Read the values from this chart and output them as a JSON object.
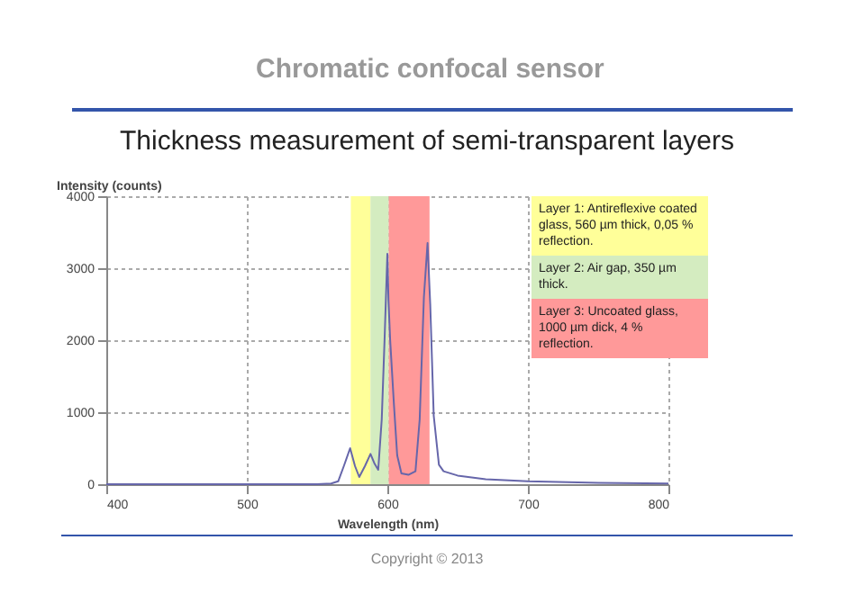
{
  "chart_data": {
    "type": "line",
    "title": "Chromatic confocal sensor",
    "subtitle": "Thickness measurement of semi-transparent layers",
    "xlabel": "Wavelength (nm)",
    "ylabel": "Intensity (counts)",
    "x": [
      400,
      450,
      500,
      550,
      560,
      565,
      569,
      573.5,
      577,
      580,
      584,
      588,
      591,
      593.5,
      596,
      598,
      600,
      600.8,
      602,
      604.7,
      607,
      610,
      615,
      620,
      623,
      626,
      628.6,
      630.5,
      633,
      636.7,
      640,
      650,
      670,
      700,
      750,
      800
    ],
    "series": [
      {
        "color": "#6666aa",
        "values": [
          0,
          0,
          0,
          0,
          10,
          40,
          250,
          500,
          250,
          100,
          250,
          420,
          280,
          200,
          900,
          2000,
          3200,
          2550,
          2000,
          1100,
          400,
          150,
          130,
          180,
          900,
          2600,
          3350,
          2500,
          950,
          270,
          180,
          120,
          70,
          40,
          20,
          10
        ]
      }
    ],
    "xlim": [
      400,
      800
    ],
    "xticks": [
      400,
      500,
      600,
      700,
      800
    ],
    "ylim": [
      0,
      4000
    ],
    "yticks": [
      0,
      1000,
      2000,
      3000,
      4000
    ],
    "grid": true,
    "bands": [
      {
        "axis": "x",
        "from": 574,
        "to": 588,
        "color": "#ffff99"
      },
      {
        "axis": "x",
        "from": 588,
        "to": 601,
        "color": "#d4ecc0"
      },
      {
        "axis": "x",
        "from": 601,
        "to": 630,
        "color": "#ff9999"
      }
    ],
    "annotations": [
      "Layer 1: Antireflexive coated glass, 560 µm thick, 0,05 % reflection.",
      "Layer 2: Air gap, 350 µm thick.",
      "Layer 3: Uncoated glass, 1000 µm dick, 4 % reflection.",
      "Copyright © 2013"
    ]
  }
}
